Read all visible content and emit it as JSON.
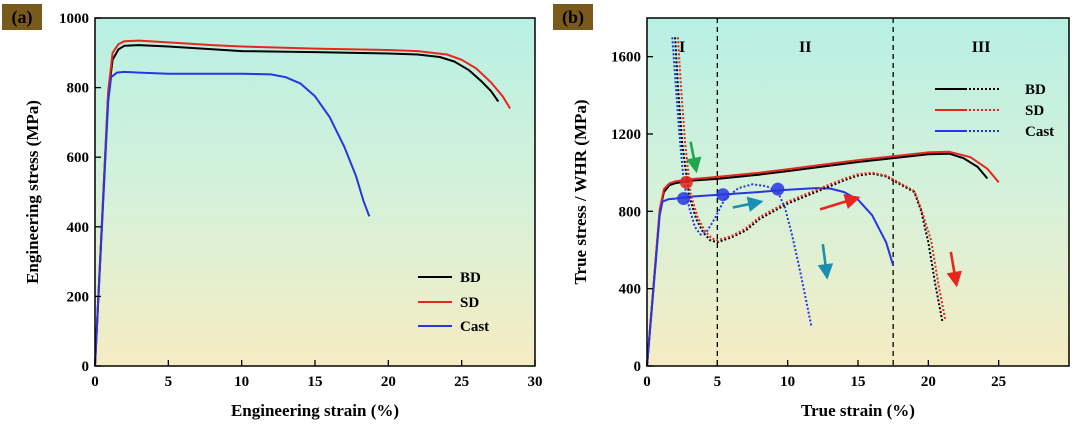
{
  "chart_data": [
    {
      "type": "line",
      "panel_label": "(a)",
      "xlabel": "Engineering strain (%)",
      "ylabel": "Engineering stress (MPa)",
      "xlim": [
        0,
        30
      ],
      "ylim": [
        0,
        1000
      ],
      "xticks": [
        0,
        5,
        10,
        15,
        20,
        25,
        30
      ],
      "yticks": [
        0,
        200,
        400,
        600,
        800,
        1000
      ],
      "grid": false,
      "legend_position": "bottom-right",
      "series": [
        {
          "name": "BD",
          "color": "#000000",
          "style": "solid",
          "x": [
            0,
            0.9,
            1.2,
            1.6,
            2,
            3,
            5,
            8,
            10,
            15,
            20,
            22,
            23.5,
            24.5,
            25.5,
            26.3,
            27,
            27.5
          ],
          "y": [
            0,
            780,
            880,
            910,
            920,
            922,
            918,
            910,
            905,
            902,
            898,
            895,
            888,
            875,
            850,
            820,
            790,
            760
          ]
        },
        {
          "name": "SD",
          "color": "#e8261f",
          "style": "solid",
          "x": [
            0,
            0.9,
            1.2,
            1.6,
            2,
            3,
            5,
            8,
            10,
            15,
            20,
            22,
            24,
            25,
            26,
            27,
            27.8,
            28.3
          ],
          "y": [
            0,
            790,
            900,
            925,
            933,
            935,
            930,
            922,
            918,
            912,
            908,
            905,
            895,
            880,
            855,
            815,
            775,
            740
          ]
        },
        {
          "name": "Cast",
          "color": "#2636e0",
          "style": "solid",
          "x": [
            0,
            0.9,
            1.1,
            1.5,
            2,
            3,
            5,
            8,
            10,
            12,
            13,
            14,
            15,
            16,
            17,
            17.8,
            18.3,
            18.7
          ],
          "y": [
            0,
            760,
            830,
            843,
            845,
            843,
            840,
            840,
            840,
            838,
            830,
            812,
            775,
            715,
            630,
            545,
            475,
            430
          ]
        }
      ]
    },
    {
      "type": "line",
      "panel_label": "(b)",
      "xlabel": "True strain (%)",
      "ylabel": "True stress / WHR (MPa)",
      "xlim": [
        0,
        30
      ],
      "ylim": [
        0,
        1800
      ],
      "xticks": [
        0,
        5,
        10,
        15,
        20,
        25
      ],
      "yticks": [
        0,
        400,
        800,
        1200,
        1600
      ],
      "grid": false,
      "legend_position": "top-right",
      "regions": [
        {
          "label": "I",
          "from": 0,
          "to": 5
        },
        {
          "label": "II",
          "from": 5,
          "to": 17.5
        },
        {
          "label": "III",
          "from": 17.5,
          "to": 30
        }
      ],
      "series": [
        {
          "name": "BD true stress",
          "legend": "BD",
          "color": "#000000",
          "style": "solid",
          "x": [
            0,
            0.9,
            1.2,
            1.6,
            2,
            3,
            5,
            8,
            10,
            15,
            20,
            21.5,
            22.5,
            23.5,
            24.2
          ],
          "y": [
            0,
            800,
            900,
            935,
            945,
            958,
            968,
            990,
            1008,
            1055,
            1095,
            1098,
            1075,
            1030,
            970
          ]
        },
        {
          "name": "SD true stress",
          "legend": "SD",
          "color": "#e8261f",
          "style": "solid",
          "x": [
            0,
            0.9,
            1.2,
            1.6,
            2,
            3,
            5,
            8,
            10,
            15,
            20,
            21.5,
            23,
            24.2,
            25
          ],
          "y": [
            0,
            810,
            915,
            945,
            955,
            965,
            978,
            1000,
            1018,
            1065,
            1105,
            1108,
            1080,
            1020,
            950
          ]
        },
        {
          "name": "Cast true stress",
          "legend": "Cast",
          "color": "#2636e0",
          "style": "solid",
          "x": [
            0,
            0.9,
            1.1,
            1.5,
            2,
            3,
            5,
            8,
            10,
            12,
            13,
            14,
            15,
            16,
            17,
            17.5
          ],
          "y": [
            0,
            780,
            850,
            862,
            866,
            875,
            885,
            900,
            912,
            920,
            918,
            900,
            860,
            780,
            640,
            520
          ]
        },
        {
          "name": "BD WHR",
          "color": "#000000",
          "style": "dotted",
          "x": [
            2,
            2.2,
            2.5,
            3,
            3.5,
            4,
            4.5,
            5,
            6,
            7,
            8,
            9,
            10,
            11,
            12,
            13,
            14,
            15,
            16,
            17,
            17.5,
            18,
            19,
            19.5,
            20,
            20.5,
            21
          ],
          "y": [
            1700,
            1450,
            1150,
            880,
            760,
            690,
            650,
            640,
            665,
            700,
            760,
            800,
            840,
            870,
            900,
            930,
            960,
            985,
            995,
            980,
            960,
            940,
            900,
            800,
            640,
            420,
            230
          ]
        },
        {
          "name": "SD WHR",
          "color": "#e8261f",
          "style": "dotted",
          "x": [
            2.2,
            2.4,
            2.7,
            3.1,
            3.6,
            4.1,
            4.6,
            5,
            6,
            7,
            8,
            9,
            10,
            11,
            12,
            13,
            14,
            15,
            16,
            17,
            17.5,
            18,
            19,
            19.5,
            20.2,
            20.7,
            21.2
          ],
          "y": [
            1700,
            1460,
            1160,
            890,
            770,
            700,
            660,
            650,
            672,
            710,
            770,
            810,
            850,
            880,
            910,
            940,
            968,
            992,
            1000,
            985,
            965,
            945,
            905,
            810,
            650,
            430,
            240
          ]
        },
        {
          "name": "Cast WHR",
          "color": "#2636e0",
          "style": "dotted",
          "x": [
            1.8,
            2,
            2.3,
            2.6,
            3,
            3.4,
            3.8,
            4.2,
            4.8,
            5.5,
            6.5,
            7.5,
            8.5,
            9.3,
            9.8,
            10.3,
            10.8,
            11.2,
            11.7
          ],
          "y": [
            1700,
            1500,
            1200,
            960,
            820,
            720,
            680,
            690,
            760,
            860,
            920,
            940,
            930,
            900,
            820,
            680,
            520,
            380,
            200
          ]
        }
      ],
      "markers": [
        {
          "color": "#e8261f",
          "x": 2.8,
          "y": 950
        },
        {
          "color": "#2636e0",
          "x": 2.6,
          "y": 866
        },
        {
          "color": "#2636e0",
          "x": 5.4,
          "y": 886
        },
        {
          "color": "#2636e0",
          "x": 9.3,
          "y": 915
        }
      ],
      "arrows": [
        {
          "color": "#1fa84a",
          "from": [
            3.1,
            1160
          ],
          "to": [
            3.5,
            1010
          ]
        },
        {
          "color": "#1a8fb0",
          "from": [
            6.1,
            820
          ],
          "to": [
            8.1,
            850
          ]
        },
        {
          "color": "#e8261f",
          "from": [
            12.3,
            810
          ],
          "to": [
            15.0,
            870
          ]
        },
        {
          "color": "#1a8fb0",
          "from": [
            12.5,
            630
          ],
          "to": [
            12.8,
            460
          ]
        },
        {
          "color": "#e8261f",
          "from": [
            21.6,
            590
          ],
          "to": [
            22.0,
            420
          ]
        }
      ]
    }
  ]
}
